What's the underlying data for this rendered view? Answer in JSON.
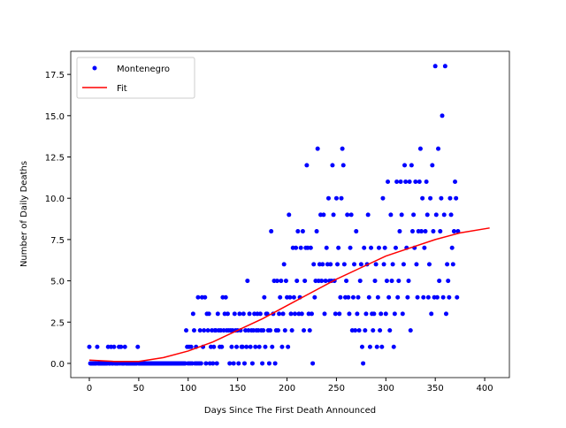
{
  "chart_data": {
    "type": "scatter",
    "xlabel": "Days Since The First Death Announced",
    "ylabel": "Number of Daily Deaths",
    "xlim": [
      -18.8,
      425
    ],
    "ylim": [
      -0.86,
      18.9
    ],
    "xticks": [
      0,
      50,
      100,
      150,
      200,
      250,
      300,
      350,
      400
    ],
    "yticks": [
      {
        "value": 0,
        "label": "0.0"
      },
      {
        "value": 2.5,
        "label": "2.5"
      },
      {
        "value": 5,
        "label": "5.0"
      },
      {
        "value": 7.5,
        "label": "7.5"
      },
      {
        "value": 10,
        "label": "10.0"
      },
      {
        "value": 12.5,
        "label": "12.5"
      },
      {
        "value": 15,
        "label": "15.0"
      },
      {
        "value": 17.5,
        "label": "17.5"
      }
    ],
    "legend": "upper left",
    "series": [
      {
        "name": "Montenegro",
        "type": "scatter",
        "color": "#0000ff",
        "x": [
          0,
          1,
          2,
          3,
          4,
          5,
          6,
          7,
          8,
          9,
          10,
          11,
          12,
          13,
          14,
          15,
          16,
          17,
          18,
          19,
          20,
          21,
          22,
          23,
          24,
          25,
          26,
          27,
          28,
          29,
          30,
          31,
          32,
          33,
          34,
          35,
          36,
          37,
          38,
          39,
          40,
          41,
          42,
          43,
          44,
          45,
          46,
          47,
          48,
          49,
          50,
          51,
          52,
          53,
          54,
          55,
          56,
          57,
          58,
          59,
          60,
          61,
          62,
          63,
          64,
          65,
          66,
          67,
          68,
          69,
          70,
          71,
          72,
          73,
          74,
          75,
          76,
          77,
          78,
          79,
          80,
          81,
          82,
          83,
          84,
          85,
          86,
          87,
          88,
          89,
          90,
          91,
          92,
          93,
          94,
          95,
          96,
          97,
          98,
          99,
          100,
          101,
          102,
          103,
          104,
          105,
          106,
          107,
          108,
          109,
          110,
          111,
          112,
          113,
          114,
          115,
          116,
          117,
          118,
          119,
          120,
          121,
          122,
          123,
          124,
          125,
          126,
          127,
          128,
          129,
          130,
          131,
          132,
          133,
          134,
          135,
          136,
          137,
          138,
          139,
          140,
          141,
          142,
          143,
          144,
          145,
          146,
          147,
          148,
          149,
          150,
          151,
          152,
          153,
          154,
          155,
          156,
          157,
          158,
          159,
          160,
          161,
          162,
          163,
          164,
          165,
          166,
          167,
          168,
          169,
          170,
          171,
          172,
          173,
          174,
          175,
          176,
          177,
          178,
          179,
          180,
          181,
          182,
          183,
          184,
          185,
          186,
          187,
          188,
          189,
          190,
          191,
          192,
          193,
          194,
          195,
          196,
          197,
          198,
          199,
          200,
          201,
          202,
          203,
          204,
          205,
          206,
          207,
          208,
          209,
          210,
          211,
          212,
          213,
          214,
          215,
          216,
          217,
          218,
          219,
          220,
          221,
          222,
          223,
          224,
          225,
          226,
          227,
          228,
          229,
          230,
          231,
          232,
          233,
          234,
          235,
          236,
          237,
          238,
          239,
          240,
          241,
          242,
          243,
          244,
          245,
          246,
          247,
          248,
          249,
          250,
          251,
          252,
          253,
          254,
          255,
          256,
          257,
          258,
          259,
          260,
          261,
          262,
          263,
          264,
          265,
          266,
          267,
          268,
          269,
          270,
          271,
          272,
          273,
          274,
          275,
          276,
          277,
          278,
          279,
          280,
          281,
          282,
          283,
          284,
          285,
          286,
          287,
          288,
          289,
          290,
          291,
          292,
          293,
          294,
          295,
          296,
          297,
          298,
          299,
          300,
          301,
          302,
          303,
          304,
          305,
          306,
          307,
          308,
          309,
          310,
          311,
          312,
          313,
          314,
          315,
          316,
          317,
          318,
          319,
          320,
          321,
          322,
          323,
          324,
          325,
          326,
          327,
          328,
          329,
          330,
          331,
          332,
          333,
          334,
          335,
          336,
          337,
          338,
          339,
          340,
          341,
          342,
          343,
          344,
          345,
          346,
          347,
          348,
          349,
          350,
          351,
          352,
          353,
          354,
          355,
          356,
          357,
          358,
          359,
          360,
          361,
          362,
          363,
          364,
          365,
          366,
          367,
          368,
          369,
          370,
          371,
          372,
          373
        ],
        "values": [
          1,
          0,
          0,
          0,
          0,
          0,
          0,
          0,
          1,
          0,
          0,
          0,
          0,
          0,
          0,
          0,
          0,
          0,
          0,
          1,
          0,
          0,
          1,
          0,
          0,
          1,
          0,
          0,
          0,
          0,
          1,
          0,
          1,
          0,
          0,
          0,
          1,
          0,
          0,
          0,
          0,
          0,
          0,
          0,
          0,
          0,
          0,
          0,
          0,
          1,
          0,
          0,
          0,
          0,
          0,
          0,
          0,
          0,
          0,
          0,
          0,
          0,
          0,
          0,
          0,
          0,
          0,
          0,
          0,
          0,
          0,
          0,
          0,
          0,
          0,
          0,
          0,
          0,
          0,
          0,
          0,
          0,
          0,
          0,
          0,
          0,
          0,
          0,
          0,
          0,
          0,
          0,
          0,
          0,
          0,
          0,
          0,
          0,
          2,
          1,
          0,
          1,
          0,
          1,
          0,
          3,
          2,
          0,
          1,
          0,
          4,
          0,
          2,
          0,
          4,
          1,
          2,
          4,
          0,
          3,
          2,
          3,
          0,
          1,
          2,
          0,
          1,
          2,
          2,
          0,
          3,
          2,
          1,
          2,
          1,
          4,
          2,
          3,
          4,
          2,
          3,
          2,
          0,
          2,
          1,
          2,
          0,
          3,
          2,
          1,
          2,
          0,
          3,
          2,
          1,
          1,
          3,
          0,
          2,
          1,
          5,
          2,
          3,
          1,
          2,
          0,
          2,
          3,
          1,
          2,
          3,
          2,
          1,
          3,
          2,
          0,
          2,
          4,
          1,
          3,
          3,
          2,
          0,
          2,
          8,
          1,
          3,
          5,
          0,
          2,
          5,
          2,
          3,
          4,
          5,
          1,
          3,
          6,
          2,
          5,
          4,
          1,
          9,
          4,
          3,
          2,
          7,
          4,
          3,
          7,
          5,
          8,
          3,
          4,
          7,
          3,
          8,
          2,
          5,
          7,
          12,
          7,
          3,
          2,
          7,
          3,
          0,
          6,
          4,
          5,
          8,
          13,
          5,
          6,
          9,
          5,
          6,
          9,
          3,
          5,
          7,
          6,
          10,
          5,
          6,
          5,
          12,
          9,
          5,
          3,
          10,
          6,
          7,
          3,
          4,
          10,
          13,
          12,
          6,
          4,
          5,
          9,
          4,
          3,
          7,
          9,
          2,
          4,
          6,
          2,
          8,
          3,
          4,
          2,
          5,
          6,
          1,
          0,
          7,
          2,
          3,
          6,
          9,
          4,
          1,
          7,
          3,
          2,
          3,
          5,
          6,
          1,
          4,
          7,
          2,
          3,
          1,
          10,
          6,
          7,
          3,
          5,
          11,
          4,
          2,
          9,
          5,
          6,
          1,
          3,
          7,
          11,
          4,
          5,
          8,
          11,
          9,
          3,
          6,
          12,
          11,
          7,
          4,
          5,
          11,
          2,
          12,
          8,
          9,
          7,
          11,
          6,
          4,
          8,
          11,
          13,
          8,
          10,
          4,
          7,
          8,
          11,
          9,
          4,
          6,
          10,
          3,
          12,
          8,
          4,
          18,
          9,
          4,
          13,
          5,
          8,
          10,
          15,
          4,
          9,
          18,
          3,
          6,
          5,
          4,
          10,
          9,
          7,
          6,
          8,
          11,
          10,
          4,
          8
        ]
      },
      {
        "name": "Fit",
        "type": "line",
        "color": "#ff0000",
        "x": [
          0,
          25,
          50,
          75,
          100,
          125,
          150,
          175,
          200,
          225,
          250,
          275,
          300,
          325,
          350,
          375,
          405
        ],
        "values": [
          0.2,
          0.12,
          0.12,
          0.35,
          0.75,
          1.3,
          2.0,
          2.7,
          3.5,
          4.3,
          5.1,
          5.8,
          6.5,
          7.0,
          7.5,
          7.9,
          8.2
        ]
      }
    ]
  }
}
